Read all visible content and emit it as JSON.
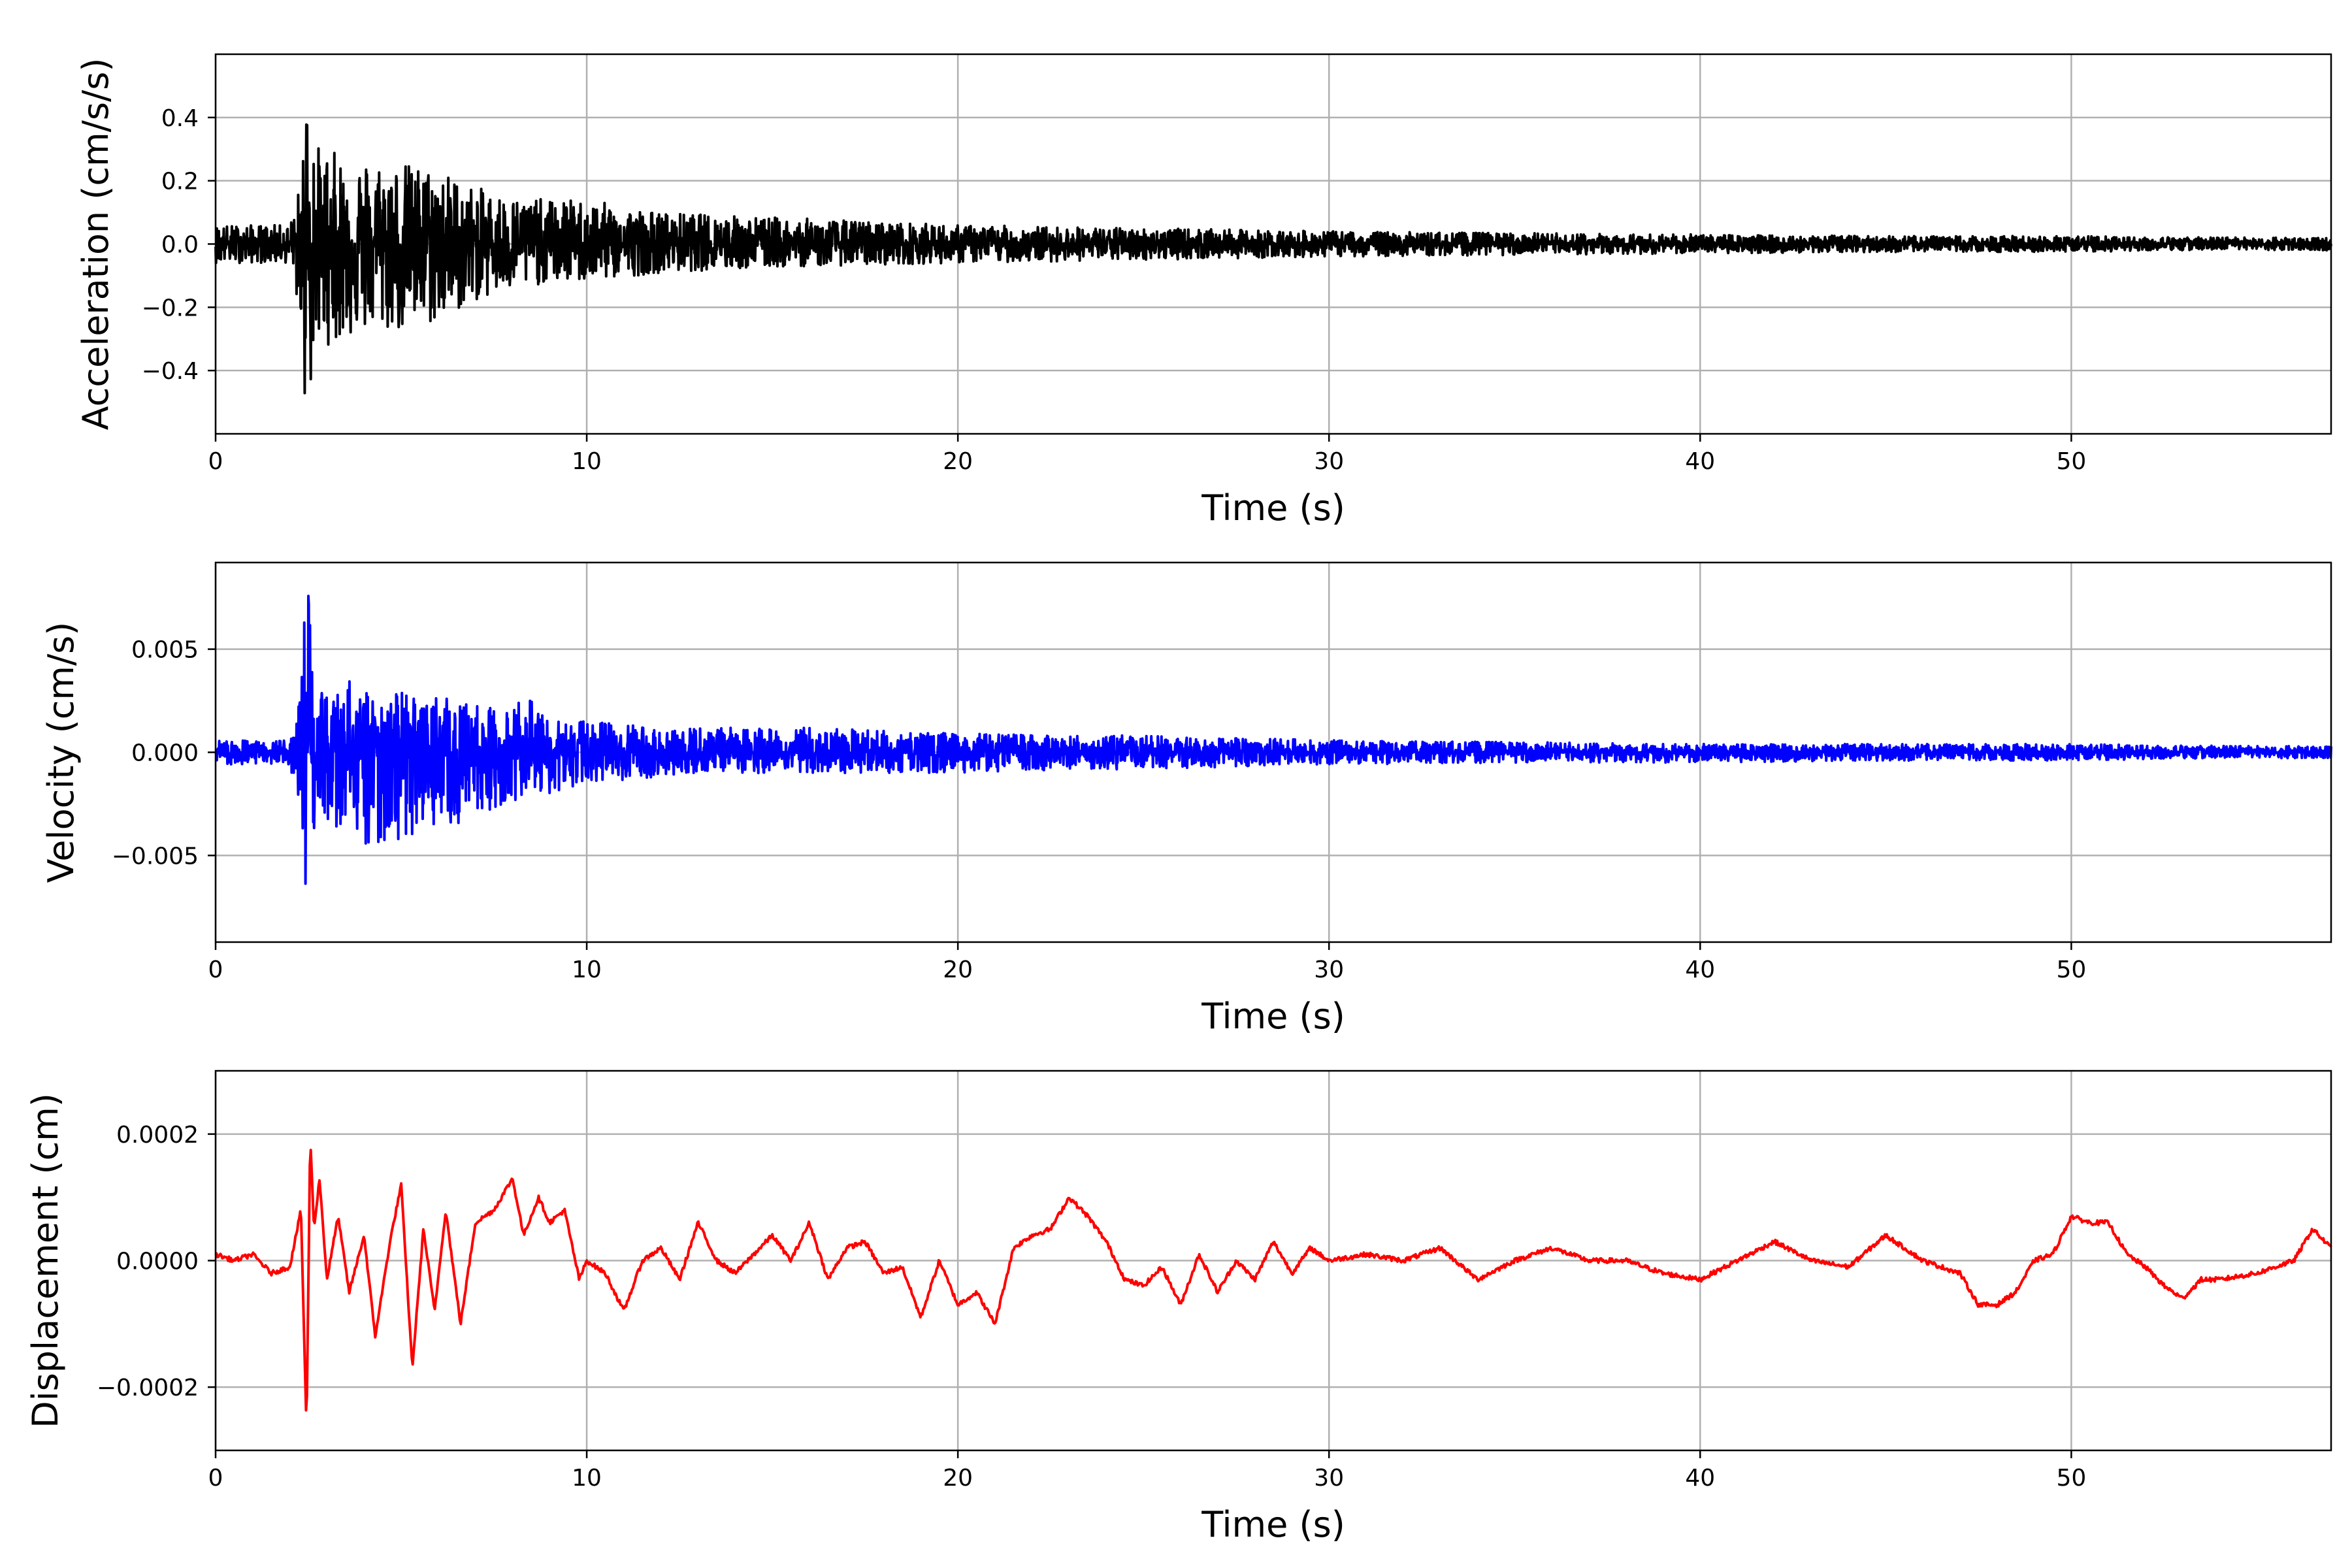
{
  "chart_data": [
    {
      "type": "line",
      "xlabel": "Time (s)",
      "ylabel": "Acceleration (cm/s/s)",
      "xlim": [
        0,
        57
      ],
      "ylim": [
        -0.6,
        0.6
      ],
      "xticks": [
        0,
        10,
        20,
        30,
        40,
        50
      ],
      "xtick_labels": [
        "0",
        "10",
        "20",
        "30",
        "40",
        "50"
      ],
      "yticks": [
        -0.4,
        -0.2,
        0.0,
        0.2,
        0.4
      ],
      "ytick_labels": [
        "−0.4",
        "−0.2",
        "0.0",
        "0.2",
        "0.4"
      ],
      "grid": true,
      "color": "#000000",
      "series": [
        {
          "x": [
            0,
            1,
            2,
            2.3,
            2.4,
            2.5,
            2.6,
            2.7,
            2.8,
            3,
            3.5,
            4,
            4.5,
            5,
            5.5,
            6,
            7,
            8,
            9,
            10,
            12,
            14,
            16,
            20,
            25,
            30,
            35,
            40,
            45,
            50,
            55,
            57
          ],
          "y_envelope": [
            0.06,
            0.06,
            0.06,
            0.2,
            0.48,
            0.52,
            0.45,
            0.35,
            0.3,
            0.3,
            0.28,
            0.27,
            0.27,
            0.26,
            0.25,
            0.24,
            0.18,
            0.15,
            0.14,
            0.14,
            0.1,
            0.09,
            0.08,
            0.06,
            0.05,
            0.04,
            0.035,
            0.03,
            0.025,
            0.025,
            0.02,
            0.02
          ],
          "y_min_envelope": [
            -0.06,
            -0.06,
            -0.06,
            -0.25,
            -0.5,
            -0.54,
            -0.45,
            -0.35,
            -0.32,
            -0.32,
            -0.3,
            -0.28,
            -0.28,
            -0.28,
            -0.27,
            -0.25,
            -0.18,
            -0.15,
            -0.12,
            -0.12,
            -0.09,
            -0.08,
            -0.07,
            -0.06,
            -0.05,
            -0.04,
            -0.035,
            -0.03,
            -0.025,
            -0.025,
            -0.02,
            -0.02
          ]
        }
      ]
    },
    {
      "type": "line",
      "xlabel": "Time (s)",
      "ylabel": "Velocity (cm/s)",
      "xlim": [
        0,
        57
      ],
      "ylim": [
        -0.0092,
        0.0092
      ],
      "xticks": [
        0,
        10,
        20,
        30,
        40,
        50
      ],
      "xtick_labels": [
        "0",
        "10",
        "20",
        "30",
        "40",
        "50"
      ],
      "yticks": [
        -0.005,
        0.0,
        0.005
      ],
      "ytick_labels": [
        "−0.005",
        "0.000",
        "0.005"
      ],
      "grid": true,
      "color": "#0000ff",
      "series": [
        {
          "x": [
            0,
            1,
            2,
            2.3,
            2.4,
            2.5,
            2.6,
            2.7,
            2.8,
            3,
            3.5,
            4,
            4.5,
            5,
            5.5,
            6,
            7,
            8,
            8.5,
            9,
            10,
            12,
            14,
            16,
            20,
            25,
            30,
            35,
            40,
            45,
            50,
            55,
            57
          ],
          "y_envelope": [
            0.0006,
            0.0006,
            0.0006,
            0.0028,
            0.007,
            0.0083,
            0.004,
            0.0035,
            0.003,
            0.003,
            0.0035,
            0.0035,
            0.003,
            0.003,
            0.0028,
            0.0028,
            0.0025,
            0.002,
            0.0032,
            0.0015,
            0.0015,
            0.0012,
            0.0012,
            0.0012,
            0.0009,
            0.0008,
            0.0006,
            0.0005,
            0.0004,
            0.0004,
            0.0004,
            0.0003,
            0.0003
          ],
          "y_min_envelope": [
            -0.0006,
            -0.0006,
            -0.0006,
            -0.003,
            -0.0071,
            -0.006,
            -0.0045,
            -0.004,
            -0.0035,
            -0.0035,
            -0.004,
            -0.005,
            -0.0045,
            -0.005,
            -0.004,
            -0.004,
            -0.003,
            -0.0025,
            -0.002,
            -0.002,
            -0.0015,
            -0.0012,
            -0.001,
            -0.001,
            -0.001,
            -0.0008,
            -0.0006,
            -0.0005,
            -0.0005,
            -0.0004,
            -0.0004,
            -0.0003,
            -0.0003
          ]
        }
      ]
    },
    {
      "type": "line",
      "xlabel": "Time (s)",
      "ylabel": "Displacement (cm)",
      "xlim": [
        0,
        57
      ],
      "ylim": [
        -0.0003,
        0.0003
      ],
      "xticks": [
        0,
        10,
        20,
        30,
        40,
        50
      ],
      "xtick_labels": [
        "0",
        "10",
        "20",
        "30",
        "40",
        "50"
      ],
      "yticks": [
        -0.0002,
        0.0,
        0.0002
      ],
      "ytick_labels": [
        "−0.0002",
        "0.0000",
        "0.0002"
      ],
      "grid": true,
      "color": "#ff0000",
      "series": [
        {
          "x": [
            0,
            0.5,
            1,
            1.5,
            2,
            2.3,
            2.45,
            2.55,
            2.65,
            2.8,
            3,
            3.3,
            3.6,
            4,
            4.3,
            4.7,
            5,
            5.3,
            5.6,
            5.9,
            6.2,
            6.6,
            7,
            7.5,
            8,
            8.3,
            8.7,
            9,
            9.4,
            9.8,
            10,
            10.5,
            11,
            11.5,
            12,
            12.5,
            13,
            13.5,
            14,
            14.5,
            15,
            15.5,
            16,
            16.5,
            17,
            17.5,
            18,
            18.5,
            19,
            19.5,
            20,
            20.5,
            21,
            21.5,
            22,
            22.5,
            23,
            23.5,
            24,
            24.5,
            25,
            25.5,
            26,
            26.5,
            27,
            27.5,
            28,
            28.5,
            29,
            29.5,
            30,
            31,
            32,
            33,
            34,
            35,
            36,
            37,
            38,
            39,
            40,
            41,
            42,
            43,
            44,
            45,
            46,
            47,
            47.5,
            48,
            48.5,
            49,
            49.5,
            50,
            50.5,
            51,
            51.5,
            52,
            52.5,
            53,
            53.5,
            54,
            55,
            56,
            56.5,
            57
          ],
          "y": [
            1e-05,
            0.0,
            1e-05,
            -2e-05,
            -1e-05,
            8e-05,
            -0.00027,
            0.0002,
            5e-05,
            0.00013,
            -3e-05,
            7e-05,
            -5e-05,
            4e-05,
            -0.00012,
            3e-05,
            0.00012,
            -0.00017,
            5e-05,
            -8e-05,
            8e-05,
            -0.0001,
            6e-05,
            8e-05,
            0.00013,
            4e-05,
            0.0001,
            6e-05,
            8e-05,
            -3e-05,
            0.0,
            -2e-05,
            -8e-05,
            0.0,
            2e-05,
            -3e-05,
            6e-05,
            0.0,
            -2e-05,
            1e-05,
            4e-05,
            0.0,
            6e-05,
            -3e-05,
            2e-05,
            3e-05,
            -2e-05,
            -1e-05,
            -9e-05,
            0.0,
            -7e-05,
            -5e-05,
            -0.0001,
            2e-05,
            4e-05,
            5e-05,
            0.0001,
            7e-05,
            3e-05,
            -3e-05,
            -4e-05,
            -1e-05,
            -7e-05,
            1e-05,
            -5e-05,
            0.0,
            -3e-05,
            3e-05,
            -2e-05,
            2e-05,
            0.0,
            1e-05,
            0.0,
            2e-05,
            -3e-05,
            0.0,
            2e-05,
            0.0,
            0.0,
            -2e-05,
            -3e-05,
            0.0,
            3e-05,
            0.0,
            -1e-05,
            4e-05,
            0.0,
            -2e-05,
            -7e-05,
            -7e-05,
            -5e-05,
            0.0,
            1e-05,
            7e-05,
            6e-05,
            6e-05,
            1e-05,
            -1e-05,
            -4e-05,
            -6e-05,
            -3e-05,
            -3e-05,
            -2e-05,
            0.0,
            5e-05,
            2e-05
          ]
        }
      ]
    }
  ]
}
